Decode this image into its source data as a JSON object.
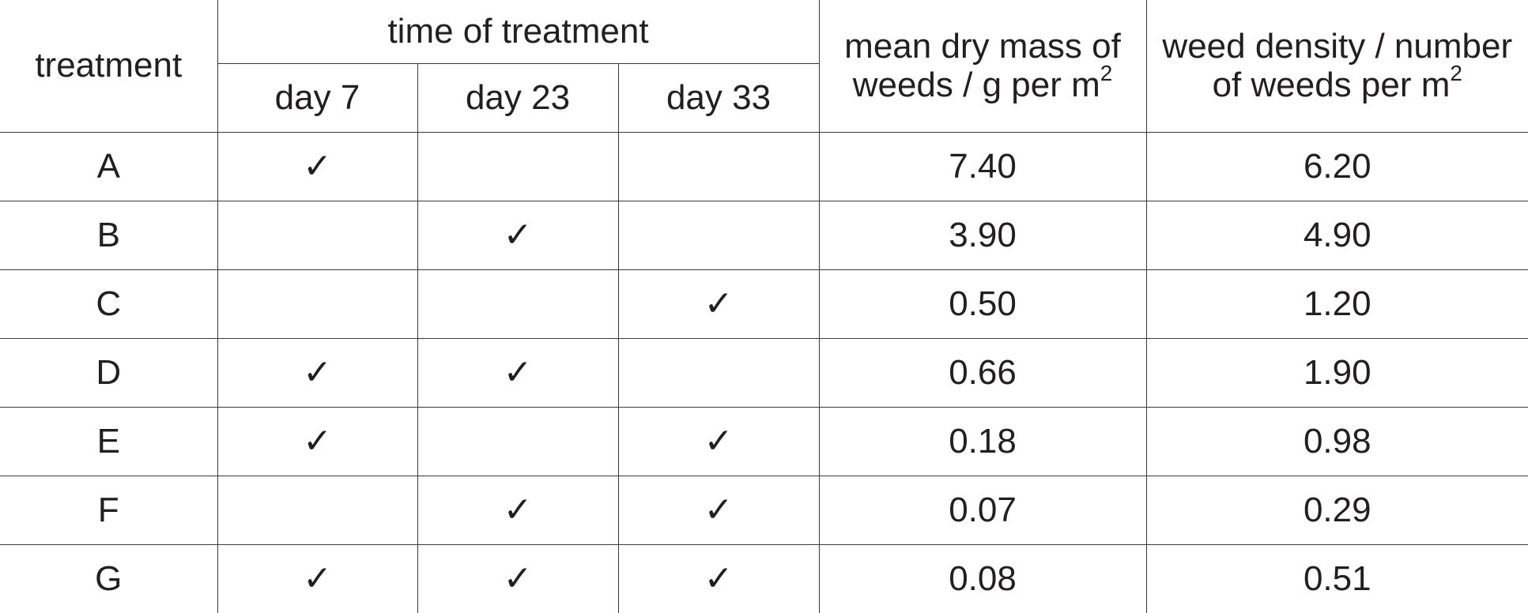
{
  "headers": {
    "treatment": "treatment",
    "time_of_treatment": "time of treatment",
    "days": [
      "day 7",
      "day 23",
      "day 33"
    ],
    "dry_mass_line1": "mean dry mass of",
    "dry_mass_line2": "weeds / g per m",
    "dry_mass_sup": "2",
    "density_line1": "weed density / number",
    "density_line2": "of weeds per m",
    "density_sup": "2"
  },
  "check_symbol": "✓",
  "rows": [
    {
      "treatment": "A",
      "day7": "✓",
      "day23": "",
      "day33": "",
      "dry_mass": "7.40",
      "density": "6.20"
    },
    {
      "treatment": "B",
      "day7": "",
      "day23": "✓",
      "day33": "",
      "dry_mass": "3.90",
      "density": "4.90"
    },
    {
      "treatment": "C",
      "day7": "",
      "day23": "",
      "day33": "✓",
      "dry_mass": "0.50",
      "density": "1.20"
    },
    {
      "treatment": "D",
      "day7": "✓",
      "day23": "✓",
      "day33": "",
      "dry_mass": "0.66",
      "density": "1.90"
    },
    {
      "treatment": "E",
      "day7": "✓",
      "day23": "",
      "day33": "✓",
      "dry_mass": "0.18",
      "density": "0.98"
    },
    {
      "treatment": "F",
      "day7": "",
      "day23": "✓",
      "day33": "✓",
      "dry_mass": "0.07",
      "density": "0.29"
    },
    {
      "treatment": "G",
      "day7": "✓",
      "day23": "✓",
      "day33": "✓",
      "dry_mass": "0.08",
      "density": "0.51"
    }
  ]
}
